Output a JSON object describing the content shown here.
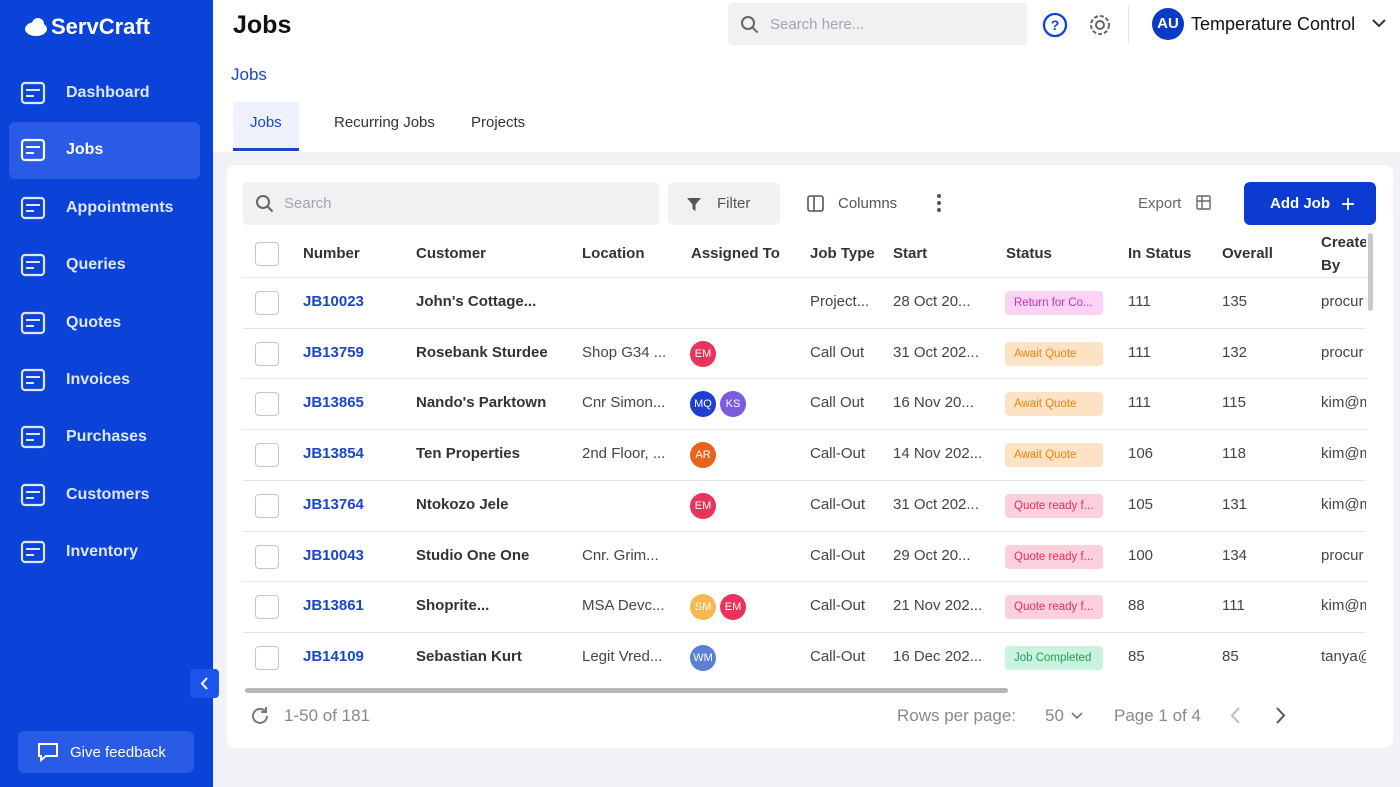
{
  "sidebar": {
    "brand": "ServCraft",
    "nav": [
      {
        "label": "Dashboard"
      },
      {
        "label": "Jobs",
        "active": true
      },
      {
        "label": "Appointments"
      },
      {
        "label": "Queries"
      },
      {
        "label": "Quotes"
      },
      {
        "label": "Invoices"
      },
      {
        "label": "Purchases"
      },
      {
        "label": "Customers"
      },
      {
        "label": "Inventory"
      }
    ],
    "feedback": "Give feedback"
  },
  "header": {
    "title": "Jobs",
    "search_placeholder": "Search here...",
    "user_initials": "AU",
    "user_name": "Temperature Control"
  },
  "breadcrumb": "Jobs",
  "tabs": [
    {
      "label": "Jobs",
      "active": true
    },
    {
      "label": "Recurring Jobs"
    },
    {
      "label": "Projects"
    }
  ],
  "toolbar": {
    "search_placeholder": "Search",
    "filter": "Filter",
    "columns": "Columns",
    "export": "Export",
    "add": "Add Job"
  },
  "table": {
    "columns": [
      "Number",
      "Customer",
      "Location",
      "Assigned To",
      "Job Type",
      "Start",
      "Status",
      "In Status",
      "Overall",
      "Created By"
    ],
    "rows": [
      {
        "number": "JB10023",
        "customer": "John's Cottage...",
        "location": null,
        "assigned": [],
        "job_type": "Project...",
        "start": "28 Oct 20...",
        "status": {
          "label": "Return for Co...",
          "bg": "#fbd3f4",
          "fg": "#d22fbb"
        },
        "in_status": 111,
        "overall": 135,
        "created_by": "procur"
      },
      {
        "number": "JB13759",
        "customer": "Rosebank Sturdee",
        "location": "Shop G34 ...",
        "assigned": [
          {
            "initials": "EM",
            "color": "#e8335a"
          }
        ],
        "job_type": "Call Out",
        "start": "31 Oct 202...",
        "status": {
          "label": "Await Quote",
          "bg": "#fde3c6",
          "fg": "#e9850f"
        },
        "in_status": 111,
        "overall": 132,
        "created_by": "procur"
      },
      {
        "number": "JB13865",
        "customer": "Nando's Parktown",
        "location": "Cnr Simon...",
        "assigned": [
          {
            "initials": "MQ",
            "color": "#1d3fcf"
          },
          {
            "initials": "KS",
            "color": "#7c5be0"
          }
        ],
        "job_type": "Call Out",
        "start": "16 Nov 20...",
        "status": {
          "label": "Await Quote",
          "bg": "#fde3c6",
          "fg": "#e9850f"
        },
        "in_status": 111,
        "overall": 115,
        "created_by": "kim@m"
      },
      {
        "number": "JB13854",
        "customer": "Ten Properties",
        "location": "2nd Floor, ...",
        "assigned": [
          {
            "initials": "AR",
            "color": "#e8631c"
          }
        ],
        "job_type": "Call-Out",
        "start": "14 Nov 202...",
        "status": {
          "label": "Await Quote",
          "bg": "#fde3c6",
          "fg": "#e9850f"
        },
        "in_status": 106,
        "overall": 118,
        "created_by": "kim@m"
      },
      {
        "number": "JB13764",
        "customer": "Ntokozo Jele",
        "location": null,
        "assigned": [
          {
            "initials": "EM",
            "color": "#e8335a"
          }
        ],
        "job_type": "Call-Out",
        "start": "31 Oct 202...",
        "status": {
          "label": "Quote ready f...",
          "bg": "#fbd0dc",
          "fg": "#e0305a"
        },
        "in_status": 105,
        "overall": 131,
        "created_by": "kim@m"
      },
      {
        "number": "JB10043",
        "customer": "Studio One One",
        "location": "Cnr. Grim...",
        "assigned": [],
        "job_type": "Call-Out",
        "start": "29 Oct 20...",
        "status": {
          "label": "Quote ready f...",
          "bg": "#fbd0dc",
          "fg": "#e0305a"
        },
        "in_status": 100,
        "overall": 134,
        "created_by": "procur"
      },
      {
        "number": "JB13861",
        "customer": "Shoprite...",
        "location": "MSA Devc...",
        "assigned": [
          {
            "initials": "SM",
            "color": "#f5b94f"
          },
          {
            "initials": "EM",
            "color": "#e8335a"
          }
        ],
        "job_type": "Call-Out",
        "start": "21 Nov 202...",
        "status": {
          "label": "Quote ready f...",
          "bg": "#fbd0dc",
          "fg": "#e0305a"
        },
        "in_status": 88,
        "overall": 111,
        "created_by": "kim@m"
      },
      {
        "number": "JB14109",
        "customer": "Sebastian Kurt",
        "location": "Legit Vred...",
        "assigned": [
          {
            "initials": "WM",
            "color": "#5b7fd6"
          }
        ],
        "job_type": "Call-Out",
        "start": "16 Dec 202...",
        "status": {
          "label": "Job Completed",
          "bg": "#c9f3de",
          "fg": "#1f9d5e"
        },
        "in_status": 85,
        "overall": 85,
        "created_by": "tanya@"
      }
    ]
  },
  "footer": {
    "range": "1-50 of 181",
    "rows_per_page_label": "Rows per page:",
    "rows_per_page": 50,
    "page": "Page 1 of 4"
  }
}
